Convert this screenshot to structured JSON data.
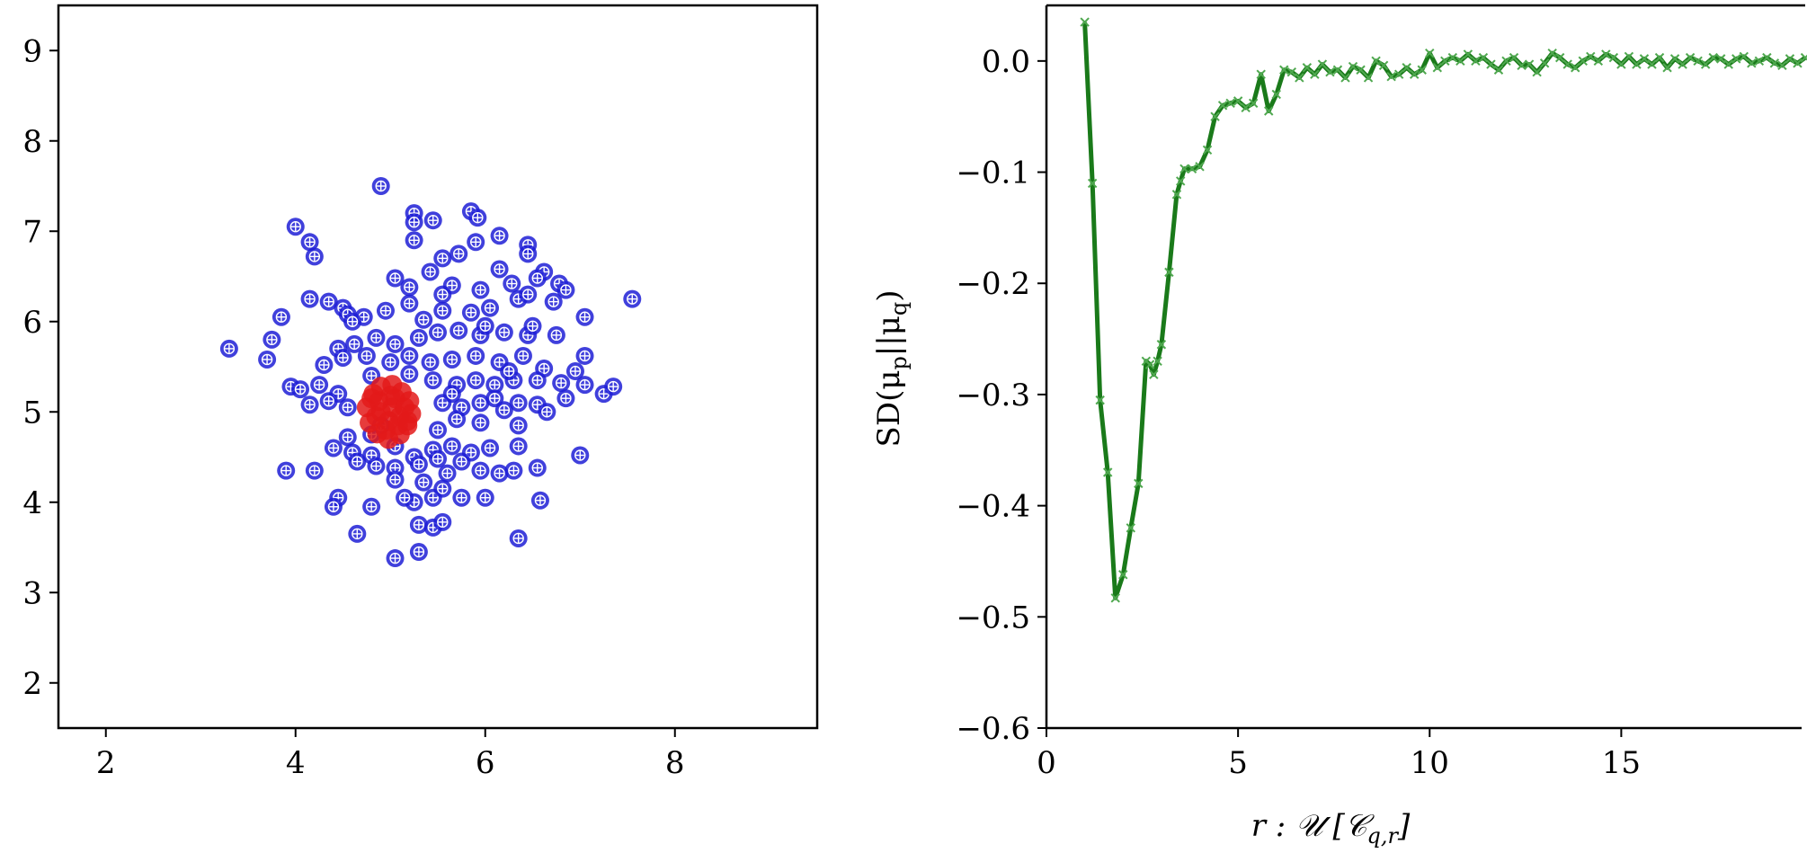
{
  "chart_data": [
    {
      "type": "scatter",
      "title": "",
      "xlabel": "",
      "ylabel": "",
      "xlim": [
        1.5,
        9.5
      ],
      "ylim": [
        1.5,
        9.5
      ],
      "xticks": [
        "2",
        "4",
        "6",
        "8"
      ],
      "yticks": [
        "2",
        "3",
        "4",
        "5",
        "6",
        "7",
        "8",
        "9"
      ],
      "grid": false,
      "series": [
        {
          "marker": "circle-plus",
          "color": "#1f1fd6",
          "points": [
            [
              4.9,
              7.5
            ],
            [
              4.0,
              7.05
            ],
            [
              4.15,
              6.88
            ],
            [
              4.2,
              6.72
            ],
            [
              5.25,
              7.2
            ],
            [
              5.25,
              7.1
            ],
            [
              5.45,
              7.12
            ],
            [
              5.85,
              7.22
            ],
            [
              5.92,
              7.15
            ],
            [
              5.25,
              6.9
            ],
            [
              6.15,
              6.95
            ],
            [
              6.45,
              6.85
            ],
            [
              6.45,
              6.75
            ],
            [
              5.55,
              6.7
            ],
            [
              5.72,
              6.75
            ],
            [
              6.15,
              6.58
            ],
            [
              6.62,
              6.55
            ],
            [
              5.9,
              6.88
            ],
            [
              5.42,
              6.55
            ],
            [
              5.05,
              6.48
            ],
            [
              5.2,
              6.38
            ],
            [
              5.65,
              6.4
            ],
            [
              5.95,
              6.35
            ],
            [
              6.28,
              6.42
            ],
            [
              6.55,
              6.48
            ],
            [
              6.78,
              6.42
            ],
            [
              6.85,
              6.35
            ],
            [
              4.15,
              6.25
            ],
            [
              4.35,
              6.22
            ],
            [
              4.5,
              6.15
            ],
            [
              4.55,
              6.08
            ],
            [
              4.72,
              6.05
            ],
            [
              4.95,
              6.12
            ],
            [
              5.2,
              6.2
            ],
            [
              5.55,
              6.12
            ],
            [
              5.85,
              6.1
            ],
            [
              6.05,
              6.15
            ],
            [
              6.35,
              6.25
            ],
            [
              6.45,
              6.3
            ],
            [
              6.72,
              6.22
            ],
            [
              7.05,
              6.05
            ],
            [
              7.55,
              6.25
            ],
            [
              3.85,
              6.05
            ],
            [
              3.75,
              5.8
            ],
            [
              3.7,
              5.58
            ],
            [
              3.3,
              5.7
            ],
            [
              4.45,
              5.7
            ],
            [
              4.62,
              5.75
            ],
            [
              4.85,
              5.82
            ],
            [
              5.05,
              5.75
            ],
            [
              5.3,
              5.82
            ],
            [
              5.5,
              5.88
            ],
            [
              5.72,
              5.9
            ],
            [
              5.95,
              5.85
            ],
            [
              6.2,
              5.88
            ],
            [
              6.45,
              5.85
            ],
            [
              6.75,
              5.85
            ],
            [
              4.3,
              5.52
            ],
            [
              4.5,
              5.6
            ],
            [
              4.75,
              5.62
            ],
            [
              5.0,
              5.55
            ],
            [
              5.2,
              5.62
            ],
            [
              5.42,
              5.55
            ],
            [
              5.65,
              5.58
            ],
            [
              5.9,
              5.62
            ],
            [
              6.15,
              5.55
            ],
            [
              6.4,
              5.62
            ],
            [
              6.62,
              5.48
            ],
            [
              6.95,
              5.45
            ],
            [
              7.05,
              5.62
            ],
            [
              3.95,
              5.28
            ],
            [
              4.05,
              5.25
            ],
            [
              4.25,
              5.3
            ],
            [
              4.45,
              5.2
            ],
            [
              4.15,
              5.08
            ],
            [
              4.35,
              5.12
            ],
            [
              4.55,
              5.05
            ],
            [
              5.45,
              5.35
            ],
            [
              5.7,
              5.3
            ],
            [
              5.9,
              5.35
            ],
            [
              6.1,
              5.3
            ],
            [
              6.3,
              5.35
            ],
            [
              6.55,
              5.35
            ],
            [
              6.8,
              5.32
            ],
            [
              7.05,
              5.3
            ],
            [
              7.25,
              5.2
            ],
            [
              7.35,
              5.28
            ],
            [
              6.85,
              5.15
            ],
            [
              6.1,
              5.15
            ],
            [
              6.35,
              5.1
            ],
            [
              6.55,
              5.08
            ],
            [
              6.65,
              5.0
            ],
            [
              5.55,
              5.1
            ],
            [
              5.75,
              5.05
            ],
            [
              5.95,
              5.1
            ],
            [
              6.2,
              5.02
            ],
            [
              5.7,
              4.92
            ],
            [
              5.95,
              4.88
            ],
            [
              6.35,
              4.85
            ],
            [
              5.5,
              4.8
            ],
            [
              4.8,
              4.75
            ],
            [
              4.55,
              4.72
            ],
            [
              4.4,
              4.6
            ],
            [
              4.6,
              4.55
            ],
            [
              4.8,
              4.52
            ],
            [
              5.05,
              4.62
            ],
            [
              5.25,
              4.5
            ],
            [
              5.45,
              4.58
            ],
            [
              5.65,
              4.62
            ],
            [
              5.85,
              4.55
            ],
            [
              6.05,
              4.6
            ],
            [
              6.35,
              4.62
            ],
            [
              4.85,
              4.4
            ],
            [
              5.05,
              4.38
            ],
            [
              5.3,
              4.42
            ],
            [
              5.5,
              4.48
            ],
            [
              5.75,
              4.45
            ],
            [
              5.95,
              4.35
            ],
            [
              6.15,
              4.32
            ],
            [
              6.55,
              4.38
            ],
            [
              7.0,
              4.52
            ],
            [
              3.9,
              4.35
            ],
            [
              4.2,
              4.35
            ],
            [
              4.65,
              4.45
            ],
            [
              4.45,
              4.05
            ],
            [
              4.4,
              3.95
            ],
            [
              4.8,
              3.95
            ],
            [
              5.05,
              4.25
            ],
            [
              5.25,
              4.0
            ],
            [
              5.45,
              4.05
            ],
            [
              5.55,
              4.15
            ],
            [
              5.75,
              4.05
            ],
            [
              6.0,
              4.05
            ],
            [
              6.3,
              4.35
            ],
            [
              6.58,
              4.02
            ],
            [
              4.65,
              3.65
            ],
            [
              5.3,
              3.75
            ],
            [
              5.45,
              3.72
            ],
            [
              5.55,
              3.78
            ],
            [
              5.05,
              3.38
            ],
            [
              5.3,
              3.45
            ],
            [
              6.35,
              3.6
            ],
            [
              5.15,
              4.05
            ],
            [
              5.35,
              4.22
            ],
            [
              5.6,
              4.32
            ],
            [
              4.9,
              4.85
            ],
            [
              5.2,
              5.42
            ],
            [
              5.65,
              5.2
            ],
            [
              6.0,
              5.95
            ],
            [
              6.5,
              5.95
            ],
            [
              5.35,
              6.02
            ],
            [
              4.8,
              5.4
            ],
            [
              6.25,
              5.45
            ],
            [
              5.55,
              6.3
            ],
            [
              4.6,
              6.0
            ]
          ]
        },
        {
          "marker": "circle",
          "color": "#e31a1a",
          "points": [
            [
              4.75,
              5.05
            ],
            [
              4.82,
              5.2
            ],
            [
              4.9,
              5.28
            ],
            [
              5.02,
              5.3
            ],
            [
              5.12,
              5.22
            ],
            [
              5.2,
              5.12
            ],
            [
              5.22,
              4.98
            ],
            [
              5.18,
              4.85
            ],
            [
              5.1,
              4.75
            ],
            [
              4.98,
              4.7
            ],
            [
              4.86,
              4.76
            ],
            [
              4.78,
              4.88
            ],
            [
              4.9,
              5.0
            ],
            [
              5.02,
              5.05
            ],
            [
              5.1,
              4.95
            ],
            [
              4.98,
              4.9
            ],
            [
              4.88,
              5.12
            ],
            [
              5.05,
              5.15
            ],
            [
              4.95,
              4.8
            ],
            [
              5.15,
              5.05
            ],
            [
              4.85,
              4.95
            ],
            [
              5.0,
              5.18
            ],
            [
              5.08,
              4.85
            ],
            [
              4.8,
              5.15
            ],
            [
              5.18,
              4.9
            ]
          ]
        }
      ]
    },
    {
      "type": "line",
      "title": "",
      "xlabel": "r : 𝒰 [𝒞",
      "xlabel_sub": "q,r",
      "xlabel_end": "]",
      "ylabel": "SD(μ",
      "ylabel_sub1": "p",
      "ylabel_mid": "||μ",
      "ylabel_sub2": "q",
      "ylabel_end": ")",
      "xlim": [
        0,
        19.8
      ],
      "ylim": [
        -0.6,
        0.05
      ],
      "xticks": [
        "0",
        "5",
        "10",
        "15"
      ],
      "yticks": [
        "0.0",
        "−0.1",
        "−0.2",
        "−0.3",
        "−0.4",
        "−0.5",
        "−0.6"
      ],
      "grid": false,
      "series": [
        {
          "color": "#1a7a1a",
          "marker": "x",
          "x": [
            1.0,
            1.2,
            1.4,
            1.6,
            1.8,
            2.0,
            2.2,
            2.4,
            2.6,
            2.7,
            2.8,
            2.9,
            3.0,
            3.2,
            3.4,
            3.5,
            3.6,
            3.8,
            4.0,
            4.2,
            4.4,
            4.6,
            4.8,
            5.0,
            5.2,
            5.4,
            5.6,
            5.8,
            6.0,
            6.2,
            6.4,
            6.6,
            6.8,
            7.0,
            7.2,
            7.4,
            7.6,
            7.8,
            8.0,
            8.2,
            8.4,
            8.6,
            8.8,
            9.0,
            9.2,
            9.4,
            9.6,
            9.8,
            10.0,
            10.2,
            10.4,
            10.6,
            10.8,
            11.0,
            11.2,
            11.4,
            11.6,
            11.8,
            12.0,
            12.2,
            12.4,
            12.6,
            12.8,
            13.0,
            13.2,
            13.4,
            13.6,
            13.8,
            14.0,
            14.2,
            14.4,
            14.6,
            14.8,
            15.0,
            15.2,
            15.4,
            15.6,
            15.8,
            16.0,
            16.2,
            16.4,
            16.6,
            16.8,
            17.0,
            17.2,
            17.4,
            17.6,
            17.8,
            18.0,
            18.2,
            18.4,
            18.6,
            18.8,
            19.0,
            19.2,
            19.4,
            19.6,
            19.8
          ],
          "y": [
            0.035,
            -0.11,
            -0.305,
            -0.37,
            -0.483,
            -0.462,
            -0.42,
            -0.38,
            -0.27,
            -0.273,
            -0.282,
            -0.27,
            -0.255,
            -0.19,
            -0.12,
            -0.108,
            -0.097,
            -0.097,
            -0.095,
            -0.08,
            -0.05,
            -0.04,
            -0.038,
            -0.036,
            -0.042,
            -0.038,
            -0.012,
            -0.045,
            -0.03,
            -0.008,
            -0.01,
            -0.015,
            -0.006,
            -0.012,
            -0.003,
            -0.01,
            -0.008,
            -0.015,
            -0.005,
            -0.008,
            -0.015,
            0.0,
            -0.004,
            -0.014,
            -0.012,
            -0.006,
            -0.012,
            -0.008,
            0.007,
            -0.006,
            0.0,
            0.003,
            0.0,
            0.006,
            0.0,
            0.003,
            -0.003,
            -0.008,
            0.0,
            0.003,
            -0.004,
            -0.003,
            -0.01,
            -0.002,
            0.007,
            0.003,
            -0.003,
            -0.006,
            0.0,
            0.004,
            0.0,
            0.006,
            0.003,
            -0.003,
            0.004,
            -0.003,
            0.002,
            -0.003,
            0.003,
            -0.006,
            0.002,
            -0.003,
            0.003,
            0.0,
            -0.003,
            0.003,
            0.002,
            -0.003,
            0.002,
            0.004,
            -0.002,
            0.0,
            0.003,
            -0.002,
            -0.004,
            0.002,
            -0.002,
            0.003
          ]
        }
      ]
    }
  ]
}
